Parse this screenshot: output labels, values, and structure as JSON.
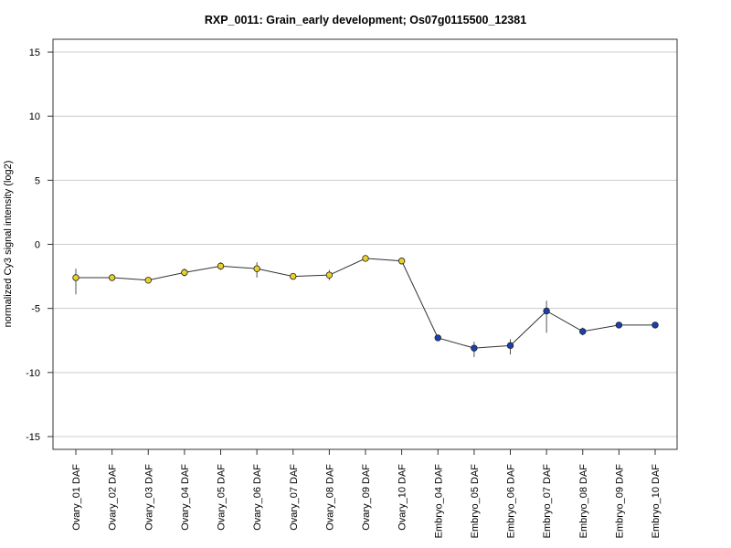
{
  "chart_data": {
    "type": "line",
    "title": "RXP_0011: Grain_early development; Os07g0115500_12381",
    "xlabel": "",
    "ylabel": "normalized Cy3 signal intensity (log2)",
    "ylim": [
      -16,
      16
    ],
    "yticks": [
      15,
      10,
      5,
      0,
      -5,
      -10,
      -15
    ],
    "grid": "horizontal",
    "categories": [
      "Ovary_01 DAF",
      "Ovary_02 DAF",
      "Ovary_03 DAF",
      "Ovary_04 DAF",
      "Ovary_05 DAF",
      "Ovary_06 DAF",
      "Ovary_07 DAF",
      "Ovary_08 DAF",
      "Ovary_09 DAF",
      "Ovary_10 DAF",
      "Embryo_04 DAF",
      "Embryo_05 DAF",
      "Embryo_06 DAF",
      "Embryo_07 DAF",
      "Embryo_08 DAF",
      "Embryo_09 DAF",
      "Embryo_10 DAF"
    ],
    "values": [
      -2.6,
      -2.6,
      -2.8,
      -2.2,
      -1.7,
      -1.9,
      -2.5,
      -2.4,
      -1.1,
      -1.3,
      -7.3,
      -8.1,
      -7.9,
      -5.2,
      -6.8,
      -6.3,
      -6.3
    ],
    "err_low": [
      -3.9,
      -2.7,
      -2.9,
      -2.5,
      -2.0,
      -2.6,
      -2.6,
      -2.8,
      -1.2,
      -1.4,
      -7.4,
      -8.8,
      -8.6,
      -6.9,
      -7.1,
      -6.4,
      -6.4
    ],
    "err_high": [
      -1.9,
      -2.5,
      -2.7,
      -1.9,
      -1.4,
      -1.4,
      -2.4,
      -2.0,
      -1.0,
      -1.2,
      -7.2,
      -7.6,
      -7.4,
      -4.4,
      -6.5,
      -6.2,
      -6.2
    ],
    "point_colors": [
      "#e8d22a",
      "#e8d22a",
      "#e8d22a",
      "#e8d22a",
      "#e8d22a",
      "#e8d22a",
      "#e8d22a",
      "#e8d22a",
      "#e8d22a",
      "#e8d22a",
      "#1a3fb0",
      "#1a3fb0",
      "#1a3fb0",
      "#1a3fb0",
      "#1a3fb0",
      "#1a3fb0",
      "#1a3fb0"
    ],
    "line_color": "#333333",
    "grid_color": "#cccccc"
  }
}
